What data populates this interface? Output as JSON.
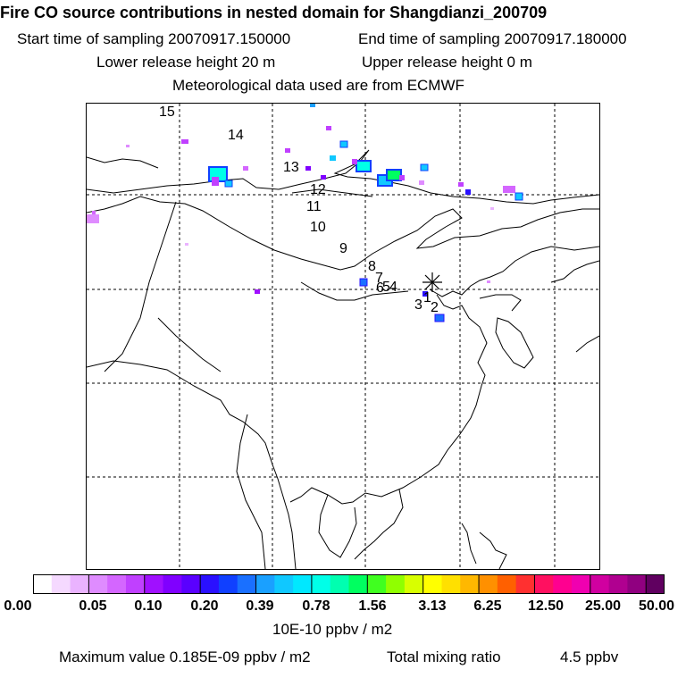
{
  "header": {
    "title": "Fire CO source contributions in nested domain for Shangdianzi_200709",
    "start_label": "Start time of sampling 20070917.150000",
    "end_label": "End time of sampling 20070917.180000",
    "lower_release": "Lower release height   20 m",
    "upper_release": "Upper release height    0 m",
    "met_data": "Meteorological data used are from ECMWF"
  },
  "trajectory_labels": [
    "15",
    "14",
    "13",
    "12",
    "11",
    "10",
    "9",
    "8",
    "7",
    "6",
    "5",
    "4",
    "3",
    "2",
    "1"
  ],
  "receptor_symbol": "receptor-star",
  "colorbar": {
    "colors": [
      "#ffffff",
      "#f5d9ff",
      "#eab3ff",
      "#df8cff",
      "#d466ff",
      "#c040ff",
      "#a010ff",
      "#8000ff",
      "#5a00ff",
      "#2a10ff",
      "#1040ff",
      "#1a70ff",
      "#1aa0ff",
      "#10c8ff",
      "#00e8ff",
      "#00ffe8",
      "#00ffb0",
      "#00ff60",
      "#40ff20",
      "#90ff00",
      "#d8ff00",
      "#ffff00",
      "#ffe000",
      "#ffb800",
      "#ff9000",
      "#ff6000",
      "#ff3030",
      "#ff1060",
      "#ff0090",
      "#f000b0",
      "#d000a0",
      "#b00090",
      "#900080",
      "#600060"
    ],
    "tick_labels": [
      "0.00",
      "0.05",
      "0.10",
      "0.20",
      "0.39",
      "0.78",
      "1.56",
      "3.13",
      "6.25",
      "12.50",
      "25.00",
      "50.00"
    ],
    "unit_label": "10E-10 ppbv / m2"
  },
  "footer": {
    "max_value": "Maximum value  0.185E-09 ppbv / m2",
    "total_mixing": "Total mixing ratio",
    "total_value": "4.5 ppbv"
  }
}
